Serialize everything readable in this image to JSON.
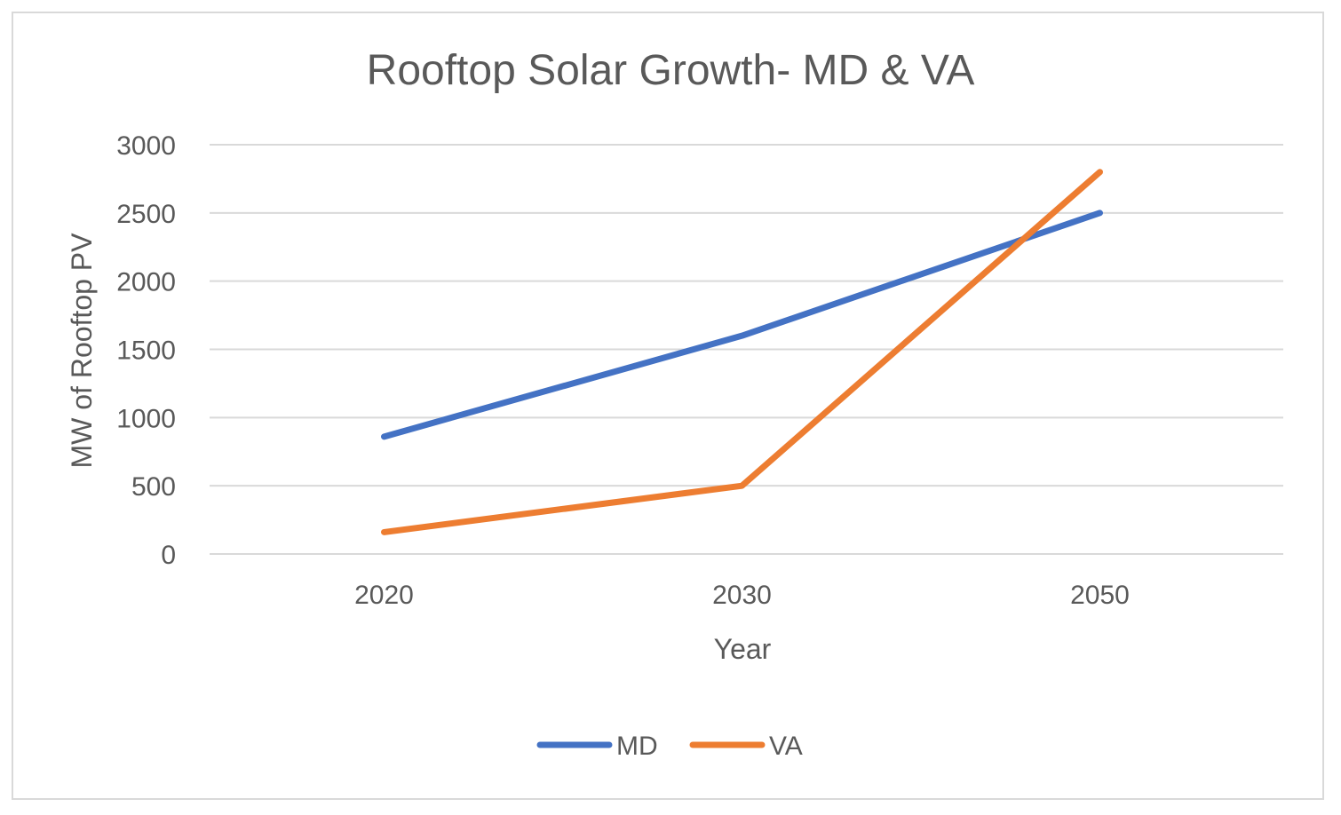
{
  "chart_data": {
    "type": "line",
    "title": "Rooftop Solar Growth- MD & VA",
    "xlabel": "Year",
    "ylabel": "MW of Rooftop PV",
    "categories": [
      "2020",
      "2030",
      "2050"
    ],
    "ylim": [
      0,
      3000
    ],
    "yticks": [
      "0",
      "500",
      "1000",
      "1500",
      "2000",
      "2500",
      "3000"
    ],
    "grid": true,
    "legend_position": "bottom",
    "series": [
      {
        "name": "MD",
        "color": "#4472c4",
        "values": [
          860,
          1600,
          2500
        ]
      },
      {
        "name": "VA",
        "color": "#ed7d31",
        "values": [
          160,
          500,
          2800
        ]
      }
    ]
  }
}
